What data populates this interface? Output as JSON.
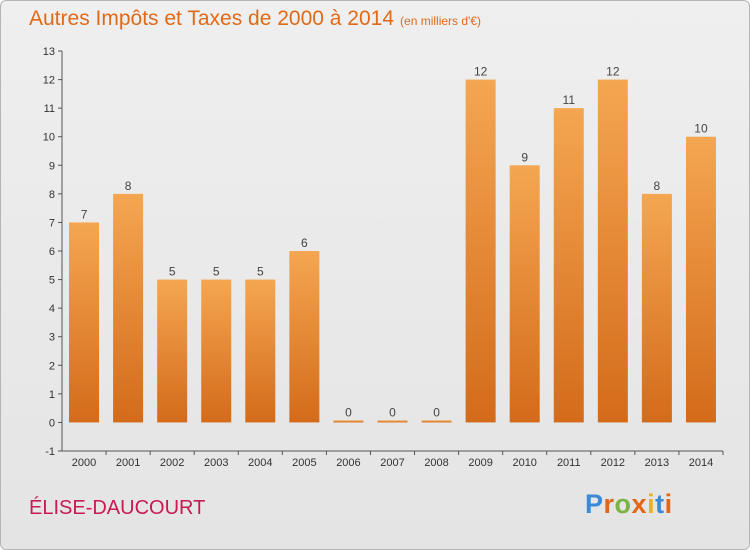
{
  "header": {
    "title": "Autres Impôts et Taxes de 2000 à 2014",
    "subtitle": "(en milliers d'€)"
  },
  "footer": {
    "commune": "ÉLISE-DAUCOURT",
    "logo_text": "Proxiti"
  },
  "colors": {
    "title": "#e06a18",
    "commune": "#c71b52",
    "bar_top": "#f5a651",
    "bar_bottom": "#d36b1a",
    "logo_letters": [
      "#3a8ad8",
      "#e0661a",
      "#7cb342",
      "#e0661a",
      "#e8b320",
      "#3a8ad8",
      "#e0661a"
    ]
  },
  "chart_data": {
    "type": "bar",
    "categories": [
      "2000",
      "2001",
      "2002",
      "2003",
      "2004",
      "2005",
      "2006",
      "2007",
      "2008",
      "2009",
      "2010",
      "2011",
      "2012",
      "2013",
      "2014"
    ],
    "values": [
      7,
      8,
      5,
      5,
      5,
      6,
      0,
      0,
      0,
      12,
      9,
      11,
      12,
      8,
      10
    ],
    "data_labels": [
      "7",
      "8",
      "5",
      "5",
      "5",
      "6",
      "0",
      "0",
      "0",
      "12",
      "9",
      "11",
      "12",
      "8",
      "10"
    ],
    "yticks": [
      "-1",
      "0",
      "1",
      "2",
      "3",
      "4",
      "5",
      "6",
      "7",
      "8",
      "9",
      "10",
      "11",
      "12",
      "13"
    ],
    "ylim": [
      -1,
      13
    ],
    "grid": false,
    "title": "Autres Impôts et Taxes de 2000 à 2014",
    "xlabel": "",
    "ylabel": ""
  }
}
